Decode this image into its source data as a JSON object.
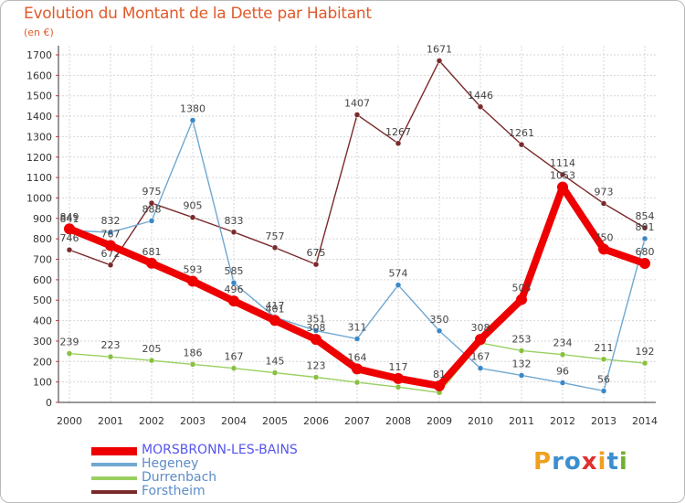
{
  "title": "Evolution du Montant de la Dette par Habitant",
  "unit": "(en €)",
  "logo": [
    "P",
    "r",
    "o",
    "x",
    "i",
    "t",
    "i"
  ],
  "logo_colors": [
    "#f0a020",
    "#3a8fd0",
    "#3a8fd0",
    "#e03030",
    "#f0a020",
    "#3a8fd0",
    "#70b030"
  ],
  "chart_data": {
    "type": "line",
    "x": [
      2000,
      2001,
      2002,
      2003,
      2004,
      2005,
      2006,
      2007,
      2008,
      2009,
      2010,
      2011,
      2012,
      2013,
      2014
    ],
    "ylim": [
      0,
      1700
    ],
    "yticks": [
      0,
      100,
      200,
      300,
      400,
      500,
      600,
      700,
      800,
      900,
      1000,
      1100,
      1200,
      1300,
      1400,
      1500,
      1600,
      1700
    ],
    "grid": true,
    "series": [
      {
        "name": "Forstheim",
        "color": "#7a2a2a",
        "marker": "#7a2a2a",
        "values": [
          746,
          672,
          975,
          905,
          833,
          757,
          675,
          1407,
          1267,
          1671,
          1446,
          1261,
          1114,
          973,
          854
        ],
        "labels": [
          "746",
          "672",
          "975",
          "905",
          "833",
          "757",
          "675",
          "1407",
          "1267",
          "1671",
          "1446",
          "1261",
          "1114",
          "973",
          "854"
        ]
      },
      {
        "name": "Durrenbach",
        "color": "#99d060",
        "marker": "#88c040",
        "values": [
          239,
          223,
          205,
          186,
          167,
          145,
          123,
          98,
          75,
          48,
          291,
          253,
          234,
          211,
          192
        ],
        "labels": [
          "239",
          "223",
          "205",
          "186",
          "167",
          "145",
          "123",
          "",
          "",
          "",
          "",
          "253",
          "234",
          "211",
          "192"
        ]
      },
      {
        "name": "Hegeney",
        "color": "#6fa8d0",
        "marker": "#3a88c8",
        "values": [
          841,
          832,
          888,
          1380,
          585,
          417,
          351,
          311,
          574,
          350,
          167,
          132,
          96,
          56,
          801
        ],
        "labels": [
          "841",
          "832",
          "888",
          "1380",
          "585",
          "417",
          "351",
          "311",
          "574",
          "350",
          "167",
          "132",
          "96",
          "56",
          "801"
        ]
      },
      {
        "name": "MORSBRONN-LES-BAINS",
        "color": "#ee0000",
        "marker": "#ee0000",
        "values": [
          849,
          767,
          681,
          593,
          496,
          401,
          308,
          164,
          117,
          81,
          308,
          503,
          1053,
          750,
          680
        ],
        "labels": [
          "849",
          "767",
          "681",
          "593",
          "496",
          "401",
          "308",
          "164",
          "117",
          "81",
          "308",
          "503",
          "1053",
          "750",
          "680"
        ]
      }
    ],
    "legend": [
      {
        "name": "MORSBRONN-LES-BAINS",
        "color": "#ee0000",
        "text_color": "#5555ee"
      },
      {
        "name": "Hegeney",
        "color": "#6fa8d0",
        "text_color": "#5c8cc8"
      },
      {
        "name": "Durrenbach",
        "color": "#99d060",
        "text_color": "#5c8cc8"
      },
      {
        "name": "Forstheim",
        "color": "#7a2a2a",
        "text_color": "#5c8cc8"
      }
    ]
  }
}
